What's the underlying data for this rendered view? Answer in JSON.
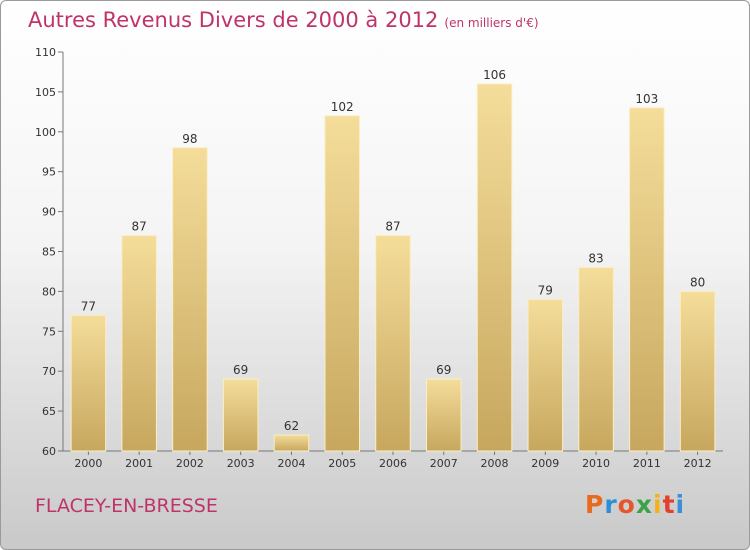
{
  "title": "Autres Revenus Divers de 2000 à 2012",
  "subtitle": "(en milliers d'€)",
  "commune": "FLACEY-EN-BRESSE",
  "logo": {
    "letters": [
      "P",
      "r",
      "o",
      "x",
      "i",
      "t",
      "i"
    ],
    "colors": [
      "#e86a1c",
      "#2a8fd8",
      "#e4572e",
      "#3aa34a",
      "#f2b31a",
      "#e4402e",
      "#3a8fd8"
    ]
  },
  "chart_data": {
    "type": "bar",
    "categories": [
      "2000",
      "2001",
      "2002",
      "2003",
      "2004",
      "2005",
      "2006",
      "2007",
      "2008",
      "2009",
      "2010",
      "2011",
      "2012"
    ],
    "values": [
      77,
      87,
      98,
      69,
      62,
      102,
      87,
      69,
      106,
      79,
      83,
      103,
      80
    ],
    "title": "Autres Revenus Divers de 2000 à 2012",
    "subtitle": "(en milliers d'€)",
    "xlabel": "",
    "ylabel": "",
    "ylim": [
      60,
      110
    ],
    "yticks": [
      60,
      65,
      70,
      75,
      80,
      85,
      90,
      95,
      100,
      105,
      110
    ],
    "grid": false,
    "bar_color": "#e7c97c"
  }
}
